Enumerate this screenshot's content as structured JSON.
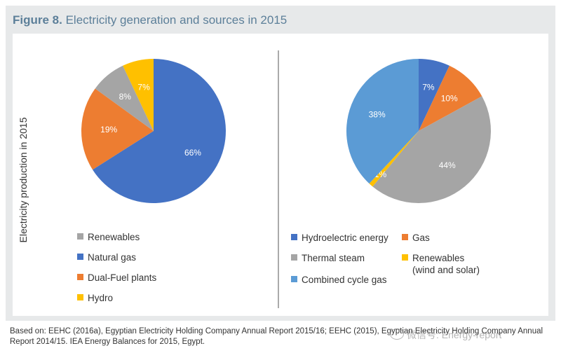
{
  "figure": {
    "label": "Figure 8.",
    "title": "Electricity generation and sources in 2015",
    "ylabel": "Electricity production in 2015"
  },
  "chart_data": [
    {
      "type": "pie",
      "series": [
        {
          "name": "Renewables",
          "value": 8,
          "label": "8%",
          "color": "#a5a5a5"
        },
        {
          "name": "Natural gas",
          "value": 66,
          "label": "66%",
          "color": "#4472c4"
        },
        {
          "name": "Dual-Fuel plants",
          "value": 19,
          "label": "19%",
          "color": "#ed7d31"
        },
        {
          "name": "Hydro",
          "value": 7,
          "label": "7%",
          "color": "#ffc000"
        }
      ],
      "slice_order": [
        "Natural gas",
        "Dual-Fuel plants",
        "Renewables",
        "Hydro"
      ],
      "legend": [
        "Renewables",
        "Natural gas",
        "Dual-Fuel plants",
        "Hydro"
      ],
      "legend_position": "bottom"
    },
    {
      "type": "pie",
      "series": [
        {
          "name": "Hydroelectric energy",
          "value": 7,
          "label": "7%",
          "color": "#4472c4"
        },
        {
          "name": "Gas",
          "value": 10,
          "label": "10%",
          "color": "#ed7d31"
        },
        {
          "name": "Thermal steam",
          "value": 44,
          "label": "44%",
          "color": "#a5a5a5"
        },
        {
          "name": "Renewables (wind and solar)",
          "value": 1,
          "label": "1%",
          "color": "#ffc000"
        },
        {
          "name": "Combined cycle gas",
          "value": 38,
          "label": "38%",
          "color": "#5b9bd5"
        }
      ],
      "slice_order": [
        "Hydroelectric energy",
        "Gas",
        "Thermal steam",
        "Renewables (wind and solar)",
        "Combined cycle gas"
      ],
      "legend": [
        {
          "label": "Hydroelectric energy",
          "color": "#4472c4"
        },
        {
          "label": "Gas",
          "color": "#ed7d31"
        },
        {
          "label": "Thermal steam",
          "color": "#a5a5a5"
        },
        {
          "label": "Renewables\n(wind and solar)",
          "color": "#ffc000"
        },
        {
          "label": "Combined cycle gas",
          "color": "#5b9bd5"
        }
      ],
      "legend_position": "bottom"
    }
  ],
  "footnote": "Based on: EEHC (2016a), Egyptian Electricity Holding Company Annual Report 2015/16; EEHC (2015), Egyptian Electricity Holding Company Annual Report 2014/15. IEA Energy Balances for 2015, Egypt.",
  "watermark": "微信号: Energy-report",
  "colors": {
    "title": "#5c7f99",
    "panel": "#e7e9ea",
    "divider": "#555555"
  }
}
